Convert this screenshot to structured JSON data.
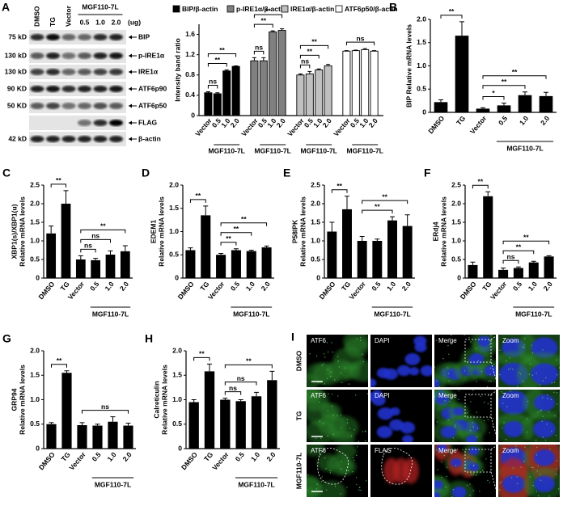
{
  "blot": {
    "panel": "A",
    "lanes": [
      "DMSO",
      "TG",
      "Vector",
      "0.5",
      "1.0",
      "2.0"
    ],
    "group_label": "MGF110-7L",
    "unit": "(ug)",
    "markers": [
      "75 kD",
      "130 kD",
      "130 kD",
      "90 KD",
      "50 KD",
      null,
      "42 kD"
    ],
    "proteins": [
      "BIP",
      "p-IRE1α",
      "IRE1α",
      "ATF6p90",
      "ATF6p50",
      "FLAG",
      "β-actin"
    ]
  },
  "chart_data": [
    {
      "type": "grouped_bar",
      "ylabel": [
        "Intensity band ratio"
      ],
      "categories": [
        "Vector",
        "0.5",
        "1.0",
        "2.0"
      ],
      "group": {
        "label": "MGF110-7L",
        "between": [
          1,
          3
        ]
      },
      "ylim": [
        0,
        1.8
      ],
      "yticks": [
        0,
        0.4,
        0.8,
        1.2,
        1.6
      ],
      "series": [
        {
          "name": "BIP/β-actin",
          "color": "#000000",
          "values": [
            0.45,
            0.43,
            0.88,
            0.97
          ],
          "errors": [
            0.02,
            0.02,
            0.02,
            0.01
          ],
          "annotations": [
            {
              "text": "ns",
              "between": [
                0,
                1
              ]
            },
            {
              "text": "**",
              "between": [
                0,
                2
              ]
            },
            {
              "text": "**",
              "between": [
                0,
                3
              ]
            }
          ]
        },
        {
          "name": "p-IRE1α/β-actin",
          "color": "#808080",
          "values": [
            1.08,
            1.08,
            1.65,
            1.68
          ],
          "errors": [
            0.06,
            0.06,
            0.02,
            0.03
          ],
          "annotations": [
            {
              "text": "ns",
              "between": [
                0,
                1
              ]
            },
            {
              "text": "**",
              "between": [
                0,
                2
              ]
            },
            {
              "text": "**",
              "between": [
                0,
                3
              ]
            }
          ]
        },
        {
          "name": "IRE1α/β-actin",
          "color": "#c0c0c0",
          "values": [
            0.8,
            0.82,
            0.9,
            0.98
          ],
          "errors": [
            0.02,
            0.05,
            0.02,
            0.03
          ],
          "annotations": [
            {
              "text": "ns",
              "between": [
                0,
                1
              ]
            },
            {
              "text": "**",
              "between": [
                0,
                2
              ]
            },
            {
              "text": "**",
              "between": [
                0,
                3
              ]
            }
          ]
        },
        {
          "name": "ATF6p50/β-actin",
          "color": "#ffffff",
          "values": [
            1.27,
            1.28,
            1.3,
            1.27
          ],
          "errors": [
            0.01,
            0.01,
            0.02,
            0.01
          ],
          "annotations": [
            {
              "text": "ns",
              "between": [
                0,
                3
              ]
            }
          ]
        }
      ]
    },
    {
      "type": "bar",
      "panel": "B",
      "ylabel": [
        "BIP Relative mRNA levels"
      ],
      "color": "#000000",
      "categories": [
        "DMSO",
        "TG",
        "Vector",
        "0.5",
        "1.0",
        "2.0"
      ],
      "group": {
        "label": "MGF110-7L",
        "between": [
          3,
          5
        ]
      },
      "ylim": [
        0,
        2
      ],
      "yticks": [
        0,
        0.5,
        {
          "value": 1,
          "label": "1.0"
        },
        1.5,
        {
          "value": 2,
          "label": "2.0"
        }
      ],
      "values": [
        0.22,
        1.65,
        0.08,
        0.15,
        0.37,
        0.35
      ],
      "errors": [
        0.05,
        0.3,
        0.02,
        0.05,
        0.07,
        0.08
      ],
      "annotations": [
        {
          "text": "**",
          "between": [
            0,
            1
          ]
        },
        {
          "text": "*",
          "between": [
            2,
            3
          ]
        },
        {
          "text": "**",
          "between": [
            2,
            4
          ]
        },
        {
          "text": "**",
          "between": [
            2,
            5
          ]
        }
      ]
    },
    {
      "type": "bar",
      "panel": "C",
      "ylabel": [
        "XBP1(s)/XBP1(u)",
        "Relative mRNA levels"
      ],
      "color": "#000000",
      "categories": [
        "DMSO",
        "TG",
        "Vector",
        "0.5",
        "1.0",
        "2.0"
      ],
      "group": {
        "label": "MGF110-7L",
        "between": [
          3,
          5
        ]
      },
      "ylim": [
        0,
        2.5
      ],
      "yticks": [
        0,
        0.5,
        {
          "value": 1,
          "label": "1.0"
        },
        1.5,
        {
          "value": 2,
          "label": "2.0"
        },
        2.5
      ],
      "values": [
        1.2,
        2.0,
        0.5,
        0.48,
        0.63,
        0.72
      ],
      "errors": [
        0.2,
        0.35,
        0.1,
        0.05,
        0.1,
        0.15
      ],
      "annotations": [
        {
          "text": "**",
          "between": [
            0,
            1
          ]
        },
        {
          "text": "ns",
          "between": [
            2,
            3
          ]
        },
        {
          "text": "ns",
          "between": [
            2,
            4
          ]
        },
        {
          "text": "**",
          "between": [
            2,
            5
          ]
        }
      ]
    },
    {
      "type": "bar",
      "panel": "D",
      "ylabel": [
        "EDEM1",
        "Relative mRNA levels"
      ],
      "color": "#000000",
      "categories": [
        "DMSO",
        "TG",
        "Vector",
        "0.5",
        "1.0",
        "2.0"
      ],
      "group": {
        "label": "MGF110-7L",
        "between": [
          3,
          5
        ]
      },
      "ylim": [
        0,
        2
      ],
      "yticks": [
        0,
        0.5,
        {
          "value": 1,
          "label": "1.0"
        },
        1.5,
        {
          "value": 2,
          "label": "2.0"
        }
      ],
      "values": [
        0.6,
        1.35,
        0.5,
        0.6,
        0.58,
        0.66
      ],
      "errors": [
        0.05,
        0.2,
        0.03,
        0.03,
        0.02,
        0.03
      ],
      "annotations": [
        {
          "text": "**",
          "between": [
            0,
            1
          ]
        },
        {
          "text": "**",
          "between": [
            2,
            3
          ]
        },
        {
          "text": "**",
          "between": [
            2,
            4
          ]
        },
        {
          "text": "**",
          "between": [
            2,
            5
          ]
        }
      ]
    },
    {
      "type": "bar",
      "panel": "E",
      "ylabel": [
        "P58IPK",
        "Relative mRNA levels"
      ],
      "color": "#000000",
      "categories": [
        "DMSO",
        "TG",
        "Vector",
        "0.5",
        "1.0",
        "2.0"
      ],
      "group": {
        "label": "MGF110-7L",
        "between": [
          3,
          5
        ]
      },
      "ylim": [
        0,
        2.5
      ],
      "yticks": [
        0,
        0.5,
        {
          "value": 1,
          "label": "1.0"
        },
        1.5,
        {
          "value": 2,
          "label": "2.0"
        },
        2.5
      ],
      "values": [
        1.25,
        1.85,
        1.0,
        1.0,
        1.55,
        1.4
      ],
      "errors": [
        0.25,
        0.35,
        0.12,
        0.05,
        0.1,
        0.3
      ],
      "annotations": [
        {
          "text": "**",
          "between": [
            0,
            1
          ]
        },
        {
          "text": "**",
          "between": [
            2,
            4
          ]
        },
        {
          "text": "**",
          "between": [
            2,
            5
          ]
        }
      ]
    },
    {
      "type": "bar",
      "panel": "F",
      "ylabel": [
        "ERdj4",
        "Relative mRNA levels"
      ],
      "color": "#000000",
      "categories": [
        "DMSO",
        "TG",
        "Vector",
        "0.5",
        "1.0",
        "2.0"
      ],
      "group": {
        "label": "MGF110-7L",
        "between": [
          3,
          5
        ]
      },
      "ylim": [
        0,
        2.5
      ],
      "yticks": [
        0,
        0.5,
        {
          "value": 1,
          "label": "1.0"
        },
        1.5,
        {
          "value": 2,
          "label": "2.0"
        },
        2.5
      ],
      "values": [
        0.35,
        2.2,
        0.22,
        0.27,
        0.42,
        0.58
      ],
      "errors": [
        0.08,
        0.12,
        0.05,
        0.03,
        0.03,
        0.02
      ],
      "annotations": [
        {
          "text": "**",
          "between": [
            0,
            1
          ]
        },
        {
          "text": "ns",
          "between": [
            2,
            3
          ]
        },
        {
          "text": "**",
          "between": [
            2,
            4
          ]
        },
        {
          "text": "**",
          "between": [
            2,
            5
          ]
        }
      ]
    },
    {
      "type": "bar",
      "panel": "G",
      "ylabel": [
        "GRP94",
        "Relative mRNA levels"
      ],
      "color": "#000000",
      "categories": [
        "DMSO",
        "TG",
        "Vector",
        "0.5",
        "1.0",
        "2.0"
      ],
      "group": {
        "label": "MGF110-7L",
        "between": [
          3,
          5
        ]
      },
      "ylim": [
        0,
        2
      ],
      "yticks": [
        0,
        0.5,
        {
          "value": 1,
          "label": "1.0"
        },
        1.5,
        {
          "value": 2,
          "label": "2.0"
        }
      ],
      "values": [
        0.5,
        1.55,
        0.48,
        0.47,
        0.55,
        0.47
      ],
      "errors": [
        0.03,
        0.04,
        0.05,
        0.03,
        0.1,
        0.05
      ],
      "annotations": [
        {
          "text": "**",
          "between": [
            0,
            1
          ]
        },
        {
          "text": "ns",
          "between": [
            2,
            5
          ]
        }
      ]
    },
    {
      "type": "bar",
      "panel": "H",
      "ylabel": [
        "Calreticulin",
        "Relative mRNA levels"
      ],
      "color": "#000000",
      "categories": [
        "DMSO",
        "TG",
        "Vector",
        "0.5",
        "1.0",
        "2.0"
      ],
      "group": {
        "label": "MGF110-7L",
        "between": [
          3,
          5
        ]
      },
      "ylim": [
        0,
        2
      ],
      "yticks": [
        0,
        0.5,
        {
          "value": 1,
          "label": "1.0"
        },
        1.5,
        {
          "value": 2,
          "label": "2.0"
        }
      ],
      "values": [
        0.95,
        1.58,
        1.0,
        0.97,
        1.07,
        1.4
      ],
      "errors": [
        0.05,
        0.15,
        0.03,
        0.03,
        0.08,
        0.18
      ],
      "annotations": [
        {
          "text": "**",
          "between": [
            0,
            1
          ]
        },
        {
          "text": "ns",
          "between": [
            2,
            3
          ]
        },
        {
          "text": "ns",
          "between": [
            2,
            4
          ]
        },
        {
          "text": "**",
          "between": [
            2,
            5
          ]
        }
      ]
    }
  ],
  "images": {
    "panel": "I",
    "rows": [
      {
        "label": "DMSO",
        "channels": [
          "ATF6",
          "DAPI",
          "Merge",
          "Zoom"
        ]
      },
      {
        "label": "TG",
        "channels": [
          "ATF6",
          "DAPI",
          "Merge",
          "Zoom"
        ]
      },
      {
        "label": "MGF110-7L",
        "channels": [
          "ATF6",
          "FLAG",
          "Merge",
          "Zoom"
        ]
      }
    ]
  }
}
